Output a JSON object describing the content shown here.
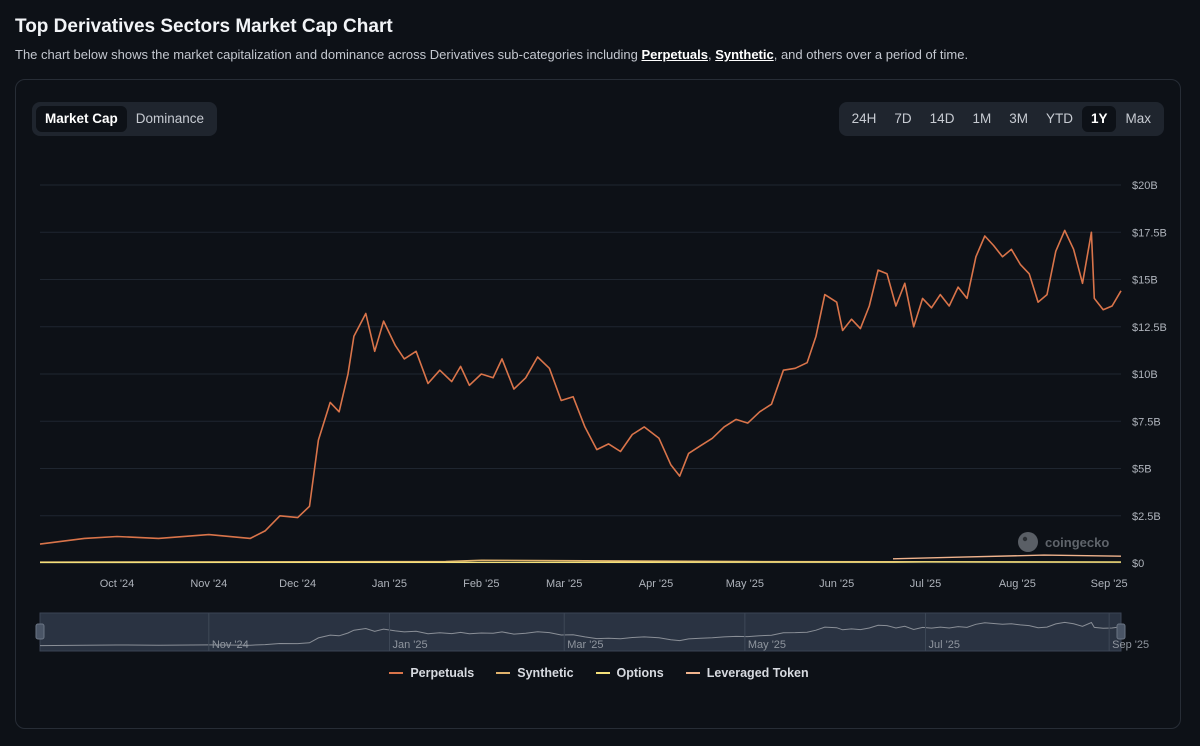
{
  "header": {
    "title": "Top Derivatives Sectors Market Cap Chart",
    "desc_before": "The chart below shows the market capitalization and dominance across Derivatives sub-categories including ",
    "link_perpetuals": "Perpetuals",
    "comma": ", ",
    "link_synthetic": "Synthetic",
    "desc_after": ", and others over a period of time."
  },
  "metric_tabs": [
    {
      "label": "Market Cap",
      "active": true
    },
    {
      "label": "Dominance",
      "active": false
    }
  ],
  "range_tabs": [
    {
      "label": "24H",
      "active": false
    },
    {
      "label": "7D",
      "active": false
    },
    {
      "label": "14D",
      "active": false
    },
    {
      "label": "1M",
      "active": false
    },
    {
      "label": "3M",
      "active": false
    },
    {
      "label": "YTD",
      "active": false
    },
    {
      "label": "1Y",
      "active": true
    },
    {
      "label": "Max",
      "active": false
    }
  ],
  "watermark": "coingecko",
  "chart_data": {
    "type": "line",
    "y_unit": "USD (billions)",
    "ylim": [
      0,
      20
    ],
    "xlim": [
      "2024-09-05",
      "2025-09-05"
    ],
    "y_ticks": [
      {
        "value": 0,
        "label": "$0"
      },
      {
        "value": 2.5,
        "label": "$2.5B"
      },
      {
        "value": 5,
        "label": "$5B"
      },
      {
        "value": 7.5,
        "label": "$7.5B"
      },
      {
        "value": 10,
        "label": "$10B"
      },
      {
        "value": 12.5,
        "label": "$12.5B"
      },
      {
        "value": 15,
        "label": "$15B"
      },
      {
        "value": 17.5,
        "label": "$17.5B"
      },
      {
        "value": 20,
        "label": "$20B"
      }
    ],
    "x_ticks": [
      {
        "date": "2024-10-01",
        "label": "Oct '24"
      },
      {
        "date": "2024-11-01",
        "label": "Nov '24"
      },
      {
        "date": "2024-12-01",
        "label": "Dec '24"
      },
      {
        "date": "2025-01-01",
        "label": "Jan '25"
      },
      {
        "date": "2025-02-01",
        "label": "Feb '25"
      },
      {
        "date": "2025-03-01",
        "label": "Mar '25"
      },
      {
        "date": "2025-04-01",
        "label": "Apr '25"
      },
      {
        "date": "2025-05-01",
        "label": "May '25"
      },
      {
        "date": "2025-06-01",
        "label": "Jun '25"
      },
      {
        "date": "2025-07-01",
        "label": "Jul '25"
      },
      {
        "date": "2025-08-01",
        "label": "Aug '25"
      },
      {
        "date": "2025-09-01",
        "label": "Sep '25"
      }
    ],
    "navigator_ticks": [
      {
        "date": "2024-11-01",
        "label": "Nov '24"
      },
      {
        "date": "2025-01-01",
        "label": "Jan '25"
      },
      {
        "date": "2025-03-01",
        "label": "Mar '25"
      },
      {
        "date": "2025-05-01",
        "label": "May '25"
      },
      {
        "date": "2025-07-01",
        "label": "Jul '25"
      },
      {
        "date": "2025-09-01",
        "label": "Sep '25"
      }
    ],
    "grid": true,
    "legend_position": "bottom",
    "series": [
      {
        "name": "Perpetuals",
        "color": "#d9744a",
        "points": [
          [
            "2024-09-05",
            1.0
          ],
          [
            "2024-09-20",
            1.3
          ],
          [
            "2024-10-01",
            1.4
          ],
          [
            "2024-10-15",
            1.3
          ],
          [
            "2024-11-01",
            1.5
          ],
          [
            "2024-11-15",
            1.3
          ],
          [
            "2024-11-20",
            1.7
          ],
          [
            "2024-11-25",
            2.5
          ],
          [
            "2024-12-01",
            2.4
          ],
          [
            "2024-12-05",
            3.0
          ],
          [
            "2024-12-08",
            6.5
          ],
          [
            "2024-12-12",
            8.5
          ],
          [
            "2024-12-15",
            8.0
          ],
          [
            "2024-12-18",
            10.0
          ],
          [
            "2024-12-20",
            12.0
          ],
          [
            "2024-12-24",
            13.2
          ],
          [
            "2024-12-27",
            11.2
          ],
          [
            "2024-12-30",
            12.8
          ],
          [
            "2025-01-03",
            11.5
          ],
          [
            "2025-01-06",
            10.8
          ],
          [
            "2025-01-10",
            11.2
          ],
          [
            "2025-01-14",
            9.5
          ],
          [
            "2025-01-18",
            10.2
          ],
          [
            "2025-01-22",
            9.6
          ],
          [
            "2025-01-25",
            10.4
          ],
          [
            "2025-01-28",
            9.4
          ],
          [
            "2025-02-01",
            10.0
          ],
          [
            "2025-02-05",
            9.8
          ],
          [
            "2025-02-08",
            10.8
          ],
          [
            "2025-02-12",
            9.2
          ],
          [
            "2025-02-16",
            9.8
          ],
          [
            "2025-02-20",
            10.9
          ],
          [
            "2025-02-24",
            10.3
          ],
          [
            "2025-02-28",
            8.6
          ],
          [
            "2025-03-04",
            8.8
          ],
          [
            "2025-03-08",
            7.2
          ],
          [
            "2025-03-12",
            6.0
          ],
          [
            "2025-03-16",
            6.3
          ],
          [
            "2025-03-20",
            5.9
          ],
          [
            "2025-03-24",
            6.8
          ],
          [
            "2025-03-28",
            7.2
          ],
          [
            "2025-04-02",
            6.6
          ],
          [
            "2025-04-06",
            5.2
          ],
          [
            "2025-04-09",
            4.6
          ],
          [
            "2025-04-12",
            5.8
          ],
          [
            "2025-04-16",
            6.2
          ],
          [
            "2025-04-20",
            6.6
          ],
          [
            "2025-04-24",
            7.2
          ],
          [
            "2025-04-28",
            7.6
          ],
          [
            "2025-05-02",
            7.4
          ],
          [
            "2025-05-06",
            8.0
          ],
          [
            "2025-05-10",
            8.4
          ],
          [
            "2025-05-14",
            10.2
          ],
          [
            "2025-05-18",
            10.3
          ],
          [
            "2025-05-22",
            10.6
          ],
          [
            "2025-05-25",
            12.0
          ],
          [
            "2025-05-28",
            14.2
          ],
          [
            "2025-06-01",
            13.8
          ],
          [
            "2025-06-03",
            12.3
          ],
          [
            "2025-06-06",
            12.9
          ],
          [
            "2025-06-09",
            12.4
          ],
          [
            "2025-06-12",
            13.6
          ],
          [
            "2025-06-15",
            15.5
          ],
          [
            "2025-06-18",
            15.3
          ],
          [
            "2025-06-21",
            13.6
          ],
          [
            "2025-06-24",
            14.8
          ],
          [
            "2025-06-27",
            12.5
          ],
          [
            "2025-06-30",
            14.0
          ],
          [
            "2025-07-03",
            13.5
          ],
          [
            "2025-07-06",
            14.2
          ],
          [
            "2025-07-09",
            13.6
          ],
          [
            "2025-07-12",
            14.6
          ],
          [
            "2025-07-15",
            14.0
          ],
          [
            "2025-07-18",
            16.2
          ],
          [
            "2025-07-21",
            17.3
          ],
          [
            "2025-07-24",
            16.8
          ],
          [
            "2025-07-27",
            16.2
          ],
          [
            "2025-07-30",
            16.6
          ],
          [
            "2025-08-02",
            15.8
          ],
          [
            "2025-08-05",
            15.3
          ],
          [
            "2025-08-08",
            13.8
          ],
          [
            "2025-08-11",
            14.2
          ],
          [
            "2025-08-14",
            16.5
          ],
          [
            "2025-08-17",
            17.6
          ],
          [
            "2025-08-20",
            16.6
          ],
          [
            "2025-08-23",
            14.8
          ],
          [
            "2025-08-26",
            17.5
          ],
          [
            "2025-08-27",
            14.0
          ],
          [
            "2025-08-30",
            13.4
          ],
          [
            "2025-09-02",
            13.6
          ],
          [
            "2025-09-05",
            14.4
          ]
        ]
      },
      {
        "name": "Synthetic",
        "color": "#e0b26c",
        "points": [
          [
            "2024-09-05",
            0.05
          ],
          [
            "2025-01-20",
            0.08
          ],
          [
            "2025-02-01",
            0.15
          ],
          [
            "2025-05-01",
            0.08
          ],
          [
            "2025-09-05",
            0.05
          ]
        ]
      },
      {
        "name": "Options",
        "color": "#f3e07a",
        "points": [
          [
            "2024-09-05",
            0.03
          ],
          [
            "2025-06-20",
            0.04
          ],
          [
            "2025-07-01",
            0.06
          ],
          [
            "2025-09-05",
            0.05
          ]
        ]
      },
      {
        "name": "Leveraged Token",
        "color": "#f0b38d",
        "points": [
          [
            "2025-06-20",
            0.22
          ],
          [
            "2025-07-10",
            0.3
          ],
          [
            "2025-08-10",
            0.42
          ],
          [
            "2025-09-05",
            0.36
          ]
        ]
      }
    ]
  }
}
